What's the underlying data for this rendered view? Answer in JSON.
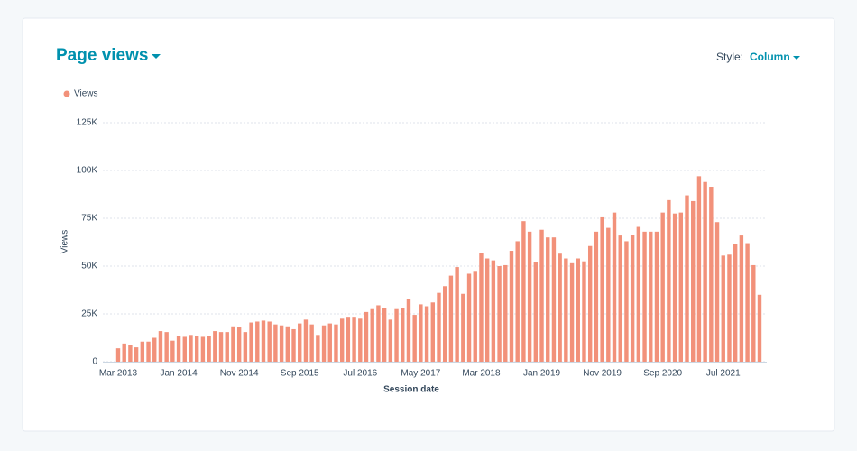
{
  "header": {
    "title": "Page views",
    "style_label": "Style:",
    "style_value": "Column"
  },
  "chart_data": {
    "type": "bar",
    "color": "#f2917a",
    "grid": true,
    "series": [
      {
        "name": "Views",
        "color": "#f2917a",
        "values": [
          7000,
          9500,
          8500,
          7500,
          10500,
          10500,
          12500,
          16000,
          15500,
          11000,
          13500,
          13000,
          14000,
          13500,
          13000,
          13500,
          16000,
          15500,
          15500,
          18500,
          18000,
          15500,
          20500,
          21000,
          21500,
          21000,
          19500,
          19000,
          18500,
          17000,
          20000,
          22000,
          19500,
          14000,
          19000,
          20000,
          19500,
          22500,
          23500,
          23500,
          22500,
          26000,
          27500,
          29500,
          28000,
          22000,
          27500,
          28000,
          33000,
          24500,
          30000,
          29000,
          31000,
          36000,
          39500,
          45000,
          49500,
          35500,
          46000,
          47500,
          57000,
          54000,
          53000,
          50000,
          50500,
          58000,
          63000,
          73500,
          68000,
          52000,
          69000,
          65000,
          65000,
          56500,
          54000,
          51500,
          54000,
          52500,
          60500,
          68000,
          75500,
          70000,
          78000,
          66000,
          63000,
          66500,
          70500,
          68000,
          68000,
          68000,
          78000,
          84500,
          77500,
          78000,
          87000,
          84000,
          97000,
          94000,
          91500,
          73000,
          55500,
          56000,
          61500,
          66000,
          62000,
          50500,
          35000
        ]
      }
    ],
    "categories": [
      "Mar 2013",
      null,
      null,
      null,
      null,
      null,
      null,
      null,
      null,
      null,
      "Jan 2014",
      null,
      null,
      null,
      null,
      null,
      null,
      null,
      null,
      null,
      "Nov 2014",
      null,
      null,
      null,
      null,
      null,
      null,
      null,
      null,
      null,
      "Sep 2015",
      null,
      null,
      null,
      null,
      null,
      null,
      null,
      null,
      null,
      "Jul 2016",
      null,
      null,
      null,
      null,
      null,
      null,
      null,
      null,
      null,
      "May 2017",
      null,
      null,
      null,
      null,
      null,
      null,
      null,
      null,
      null,
      "Mar 2018",
      null,
      null,
      null,
      null,
      null,
      null,
      null,
      null,
      null,
      "Jan 2019",
      null,
      null,
      null,
      null,
      null,
      null,
      null,
      null,
      null,
      "Nov 2019",
      null,
      null,
      null,
      null,
      null,
      null,
      null,
      null,
      null,
      "Sep 2020",
      null,
      null,
      null,
      null,
      null,
      null,
      null,
      null,
      null,
      "Jul 2021",
      null,
      null,
      null,
      null,
      null,
      null
    ],
    "ylim": [
      0,
      125000
    ],
    "yticks": [
      0,
      {
        "value": 25000,
        "label": "25K"
      },
      {
        "value": 50000,
        "label": "50K"
      },
      {
        "value": 75000,
        "label": "75K"
      },
      {
        "value": 100000,
        "label": "100K"
      },
      {
        "value": 125000,
        "label": "125K"
      }
    ],
    "xlabel": "Session date",
    "ylabel": "Views"
  }
}
